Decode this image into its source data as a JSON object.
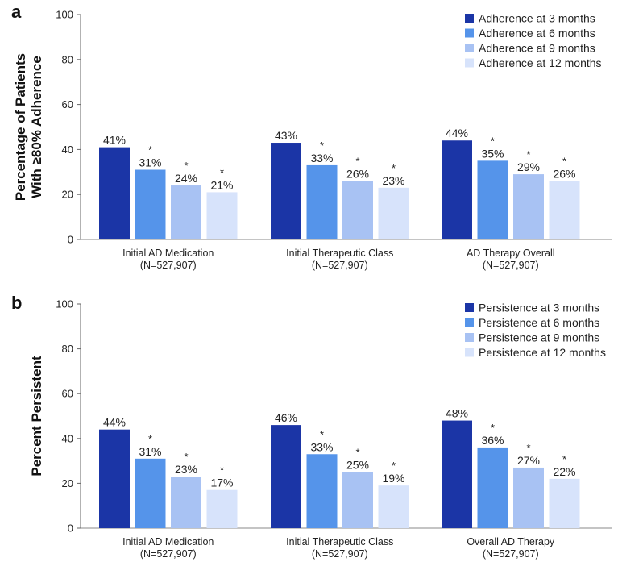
{
  "colors": [
    "#1b35a6",
    "#5594ea",
    "#a8c2f3",
    "#d7e3fb"
  ],
  "chart_data": [
    {
      "type": "bar",
      "panel_label": "a",
      "ylabel_lines": [
        "Percentage of Patients",
        "With ≥80% Adherence"
      ],
      "ylim": [
        0,
        100
      ],
      "yticks": [
        0,
        20,
        40,
        60,
        80,
        100
      ],
      "categories": [
        [
          "Initial AD Medication",
          "(N=527,907)"
        ],
        [
          "Initial Therapeutic Class",
          "(N=527,907)"
        ],
        [
          "AD Therapy Overall",
          "(N=527,907)"
        ]
      ],
      "series": [
        {
          "name": "Adherence at 3 months",
          "values": [
            41,
            43,
            44
          ],
          "labels": [
            "41%",
            "43%",
            "44%"
          ],
          "star": false
        },
        {
          "name": "Adherence at 6 months",
          "values": [
            31,
            33,
            35
          ],
          "labels": [
            "31%",
            "33%",
            "35%"
          ],
          "star": true
        },
        {
          "name": "Adherence at 9 months",
          "values": [
            24,
            26,
            29
          ],
          "labels": [
            "24%",
            "26%",
            "29%"
          ],
          "star": true
        },
        {
          "name": "Adherence at 12 months",
          "values": [
            21,
            23,
            26
          ],
          "labels": [
            "21%",
            "23%",
            "26%"
          ],
          "star": true
        }
      ],
      "legend_position": "top-right"
    },
    {
      "type": "bar",
      "panel_label": "b",
      "ylabel_lines": [
        "Percent Persistent"
      ],
      "ylim": [
        0,
        100
      ],
      "yticks": [
        0,
        20,
        40,
        60,
        80,
        100
      ],
      "categories": [
        [
          "Initial AD Medication",
          "(N=527,907)"
        ],
        [
          "Initial Therapeutic Class",
          "(N=527,907)"
        ],
        [
          "Overall AD Therapy",
          "(N=527,907)"
        ]
      ],
      "series": [
        {
          "name": "Persistence at 3 months",
          "values": [
            44,
            46,
            48
          ],
          "labels": [
            "44%",
            "46%",
            "48%"
          ],
          "star": false
        },
        {
          "name": "Persistence at 6 months",
          "values": [
            31,
            33,
            36
          ],
          "labels": [
            "31%",
            "33%",
            "36%"
          ],
          "star": true
        },
        {
          "name": "Persistence at 9 months",
          "values": [
            23,
            25,
            27
          ],
          "labels": [
            "23%",
            "25%",
            "27%"
          ],
          "star": true
        },
        {
          "name": "Persistence at 12 months",
          "values": [
            17,
            19,
            22
          ],
          "labels": [
            "17%",
            "19%",
            "22%"
          ],
          "star": true
        }
      ],
      "legend_position": "top-right"
    }
  ],
  "star_symbol": "*"
}
